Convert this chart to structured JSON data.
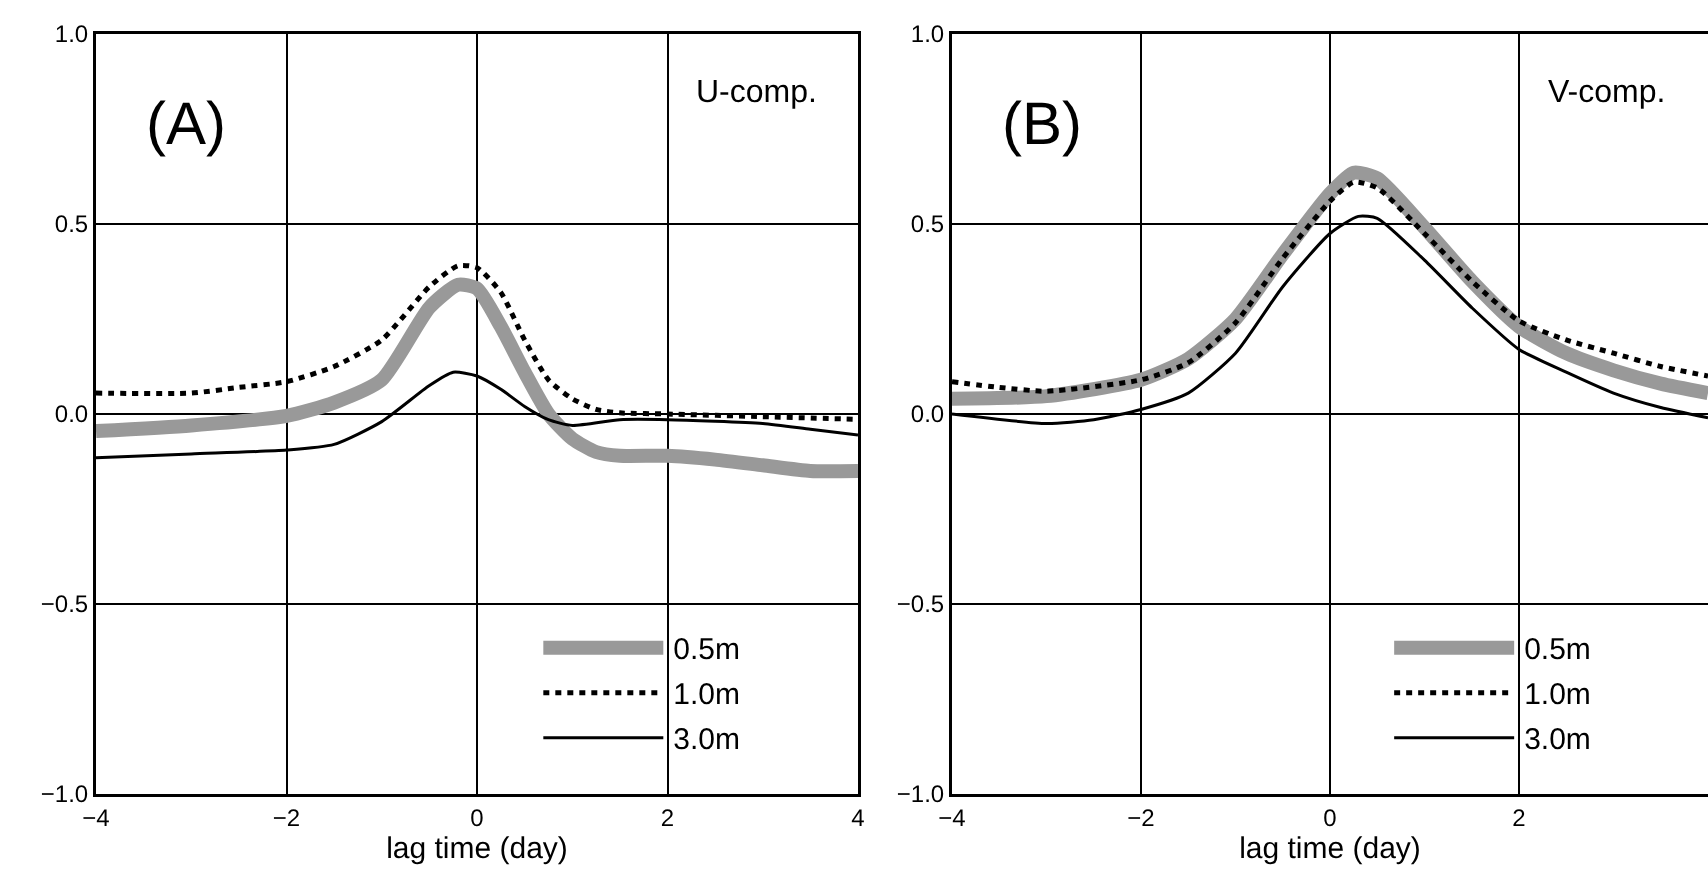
{
  "chart_data": [
    {
      "type": "line",
      "xlabel": "lag time (day)",
      "xlim": [
        -4,
        4
      ],
      "ylim": [
        -1.0,
        1.0
      ],
      "xticks": [
        -4,
        -2,
        0,
        2,
        4
      ],
      "yticks": [
        {
          "value": -1,
          "label": "−1.0"
        },
        {
          "value": -0.5,
          "label": "−0.5"
        },
        {
          "value": 0,
          "label": "0.0"
        },
        {
          "value": 0.5,
          "label": "0.5"
        },
        {
          "value": 1,
          "label": "1.0"
        }
      ],
      "grid": true,
      "legend": "bottom right",
      "annotations": [
        "(A)",
        "U-comp."
      ],
      "series": [
        {
          "name": "0.5m",
          "color": "#999999",
          "line_style": "solid",
          "x": [
            -4,
            -3,
            -2,
            -1.5,
            -1,
            -0.5,
            -0.2,
            0,
            0.25,
            0.5,
            0.75,
            1,
            1.25,
            1.5,
            2,
            2.5,
            3,
            3.5,
            4
          ],
          "values": [
            -0.045,
            -0.03,
            -0.005,
            0.03,
            0.09,
            0.28,
            0.34,
            0.33,
            0.23,
            0.11,
            0,
            -0.065,
            -0.1,
            -0.11,
            -0.11,
            -0.12,
            -0.135,
            -0.15,
            -0.15
          ]
        },
        {
          "name": "1.0m",
          "color": "#000000",
          "line_style": "dashed",
          "x": [
            -4,
            -3,
            -2.5,
            -2,
            -1.5,
            -1,
            -0.5,
            -0.2,
            0,
            0.25,
            0.5,
            0.75,
            1,
            1.25,
            1.5,
            2,
            3,
            4
          ],
          "values": [
            0.055,
            0.055,
            0.07,
            0.085,
            0.125,
            0.195,
            0.335,
            0.39,
            0.385,
            0.32,
            0.195,
            0.09,
            0.04,
            0.012,
            0.003,
            0,
            -0.007,
            -0.014
          ]
        },
        {
          "name": "3.0m",
          "color": "#000000",
          "line_style": "solid",
          "x": [
            -4,
            -3,
            -2,
            -1.5,
            -1,
            -0.5,
            -0.25,
            0,
            0.25,
            0.5,
            0.75,
            1,
            1.5,
            2,
            3,
            3.5,
            4
          ],
          "values": [
            -0.115,
            -0.105,
            -0.095,
            -0.08,
            -0.02,
            0.075,
            0.11,
            0.1,
            0.065,
            0.02,
            -0.015,
            -0.03,
            -0.015,
            -0.015,
            -0.025,
            -0.04,
            -0.055
          ]
        }
      ]
    },
    {
      "type": "line",
      "xlabel": "lag time (day)",
      "xlim": [
        -4,
        4
      ],
      "ylim": [
        -1.0,
        1.0
      ],
      "xticks": [
        -4,
        -2,
        0,
        2,
        {
          "value": 4,
          "label": null
        }
      ],
      "yticks": [
        {
          "value": -1,
          "label": "−1.0"
        },
        {
          "value": -0.5,
          "label": "−0.5"
        },
        {
          "value": 0,
          "label": "0.0"
        },
        {
          "value": 0.5,
          "label": "0.5"
        },
        {
          "value": 1,
          "label": "1.0"
        }
      ],
      "grid": true,
      "legend": "bottom right",
      "annotations": [
        "(B)",
        "V-comp."
      ],
      "series": [
        {
          "name": "0.5m",
          "color": "#999999",
          "line_style": "solid",
          "x": [
            -4,
            -3,
            -2,
            -1.5,
            -1,
            -0.5,
            0,
            0.25,
            0.5,
            1,
            1.5,
            2,
            2.5,
            3,
            3.5,
            4
          ],
          "values": [
            0.04,
            0.047,
            0.09,
            0.145,
            0.25,
            0.42,
            0.58,
            0.635,
            0.62,
            0.49,
            0.35,
            0.23,
            0.16,
            0.115,
            0.08,
            0.055
          ]
        },
        {
          "name": "1.0m",
          "color": "#000000",
          "line_style": "dashed",
          "x": [
            -4,
            -3.5,
            -3,
            -2,
            -1.5,
            -1,
            -0.5,
            0,
            0.25,
            0.5,
            1,
            1.5,
            2,
            2.5,
            3,
            3.5,
            4
          ],
          "values": [
            0.085,
            0.07,
            0.06,
            0.09,
            0.135,
            0.24,
            0.41,
            0.56,
            0.61,
            0.595,
            0.475,
            0.35,
            0.245,
            0.195,
            0.16,
            0.125,
            0.1
          ]
        },
        {
          "name": "3.0m",
          "color": "#000000",
          "line_style": "solid",
          "x": [
            -4,
            -3,
            -2.5,
            -2,
            -1.5,
            -1,
            -0.5,
            0,
            0.3,
            0.5,
            1,
            1.5,
            2,
            2.5,
            3,
            3.5,
            4
          ],
          "values": [
            0,
            -0.025,
            -0.015,
            0.012,
            0.055,
            0.16,
            0.335,
            0.475,
            0.52,
            0.515,
            0.405,
            0.28,
            0.17,
            0.11,
            0.055,
            0.017,
            -0.01
          ]
        }
      ]
    }
  ]
}
